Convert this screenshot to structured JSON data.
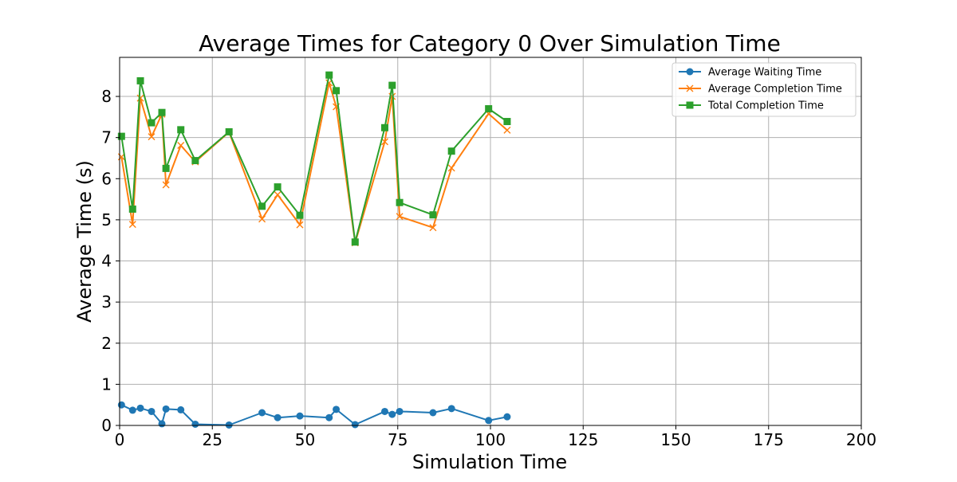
{
  "chart_data": {
    "type": "line",
    "title": "Average Times for Category 0 Over Simulation Time",
    "xlabel": "Simulation Time",
    "ylabel": "Average Time (s)",
    "xlim": [
      0,
      200
    ],
    "ylim": [
      0,
      8.95
    ],
    "xticks": [
      "0",
      "25",
      "50",
      "75",
      "100",
      "125",
      "150",
      "175",
      "200"
    ],
    "yticks": [
      "0",
      "1",
      "2",
      "3",
      "4",
      "5",
      "6",
      "7",
      "8"
    ],
    "grid": true,
    "legend_position": "top-right",
    "x": [
      0.5,
      3.5,
      5.6,
      8.6,
      11.4,
      12.5,
      16.5,
      20.4,
      29.5,
      38.4,
      42.6,
      48.6,
      56.5,
      58.4,
      63.5,
      71.5,
      73.5,
      75.5,
      84.5,
      89.5,
      99.5,
      104.5
    ],
    "series": [
      {
        "name": "Average Waiting Time",
        "color": "#1f77b4",
        "marker": "circle",
        "values": [
          0.5,
          0.37,
          0.42,
          0.34,
          0.04,
          0.4,
          0.38,
          0.03,
          0.01,
          0.31,
          0.19,
          0.23,
          0.19,
          0.39,
          0.02,
          0.34,
          0.27,
          0.34,
          0.31,
          0.41,
          0.12,
          0.21
        ]
      },
      {
        "name": "Average Completion Time",
        "color": "#ff7f0e",
        "marker": "x",
        "values": [
          6.53,
          4.89,
          7.96,
          7.02,
          7.57,
          5.85,
          6.81,
          6.41,
          7.13,
          5.02,
          5.61,
          4.88,
          8.33,
          7.75,
          4.44,
          6.9,
          8.0,
          5.08,
          4.81,
          6.26,
          7.58,
          7.18
        ]
      },
      {
        "name": "Total Completion Time",
        "color": "#2ca02c",
        "marker": "square",
        "values": [
          7.03,
          5.26,
          8.38,
          7.36,
          7.61,
          6.25,
          7.19,
          6.44,
          7.14,
          5.33,
          5.8,
          5.11,
          8.52,
          8.14,
          4.46,
          7.24,
          8.27,
          5.42,
          5.12,
          6.67,
          7.7,
          7.39
        ]
      }
    ]
  }
}
